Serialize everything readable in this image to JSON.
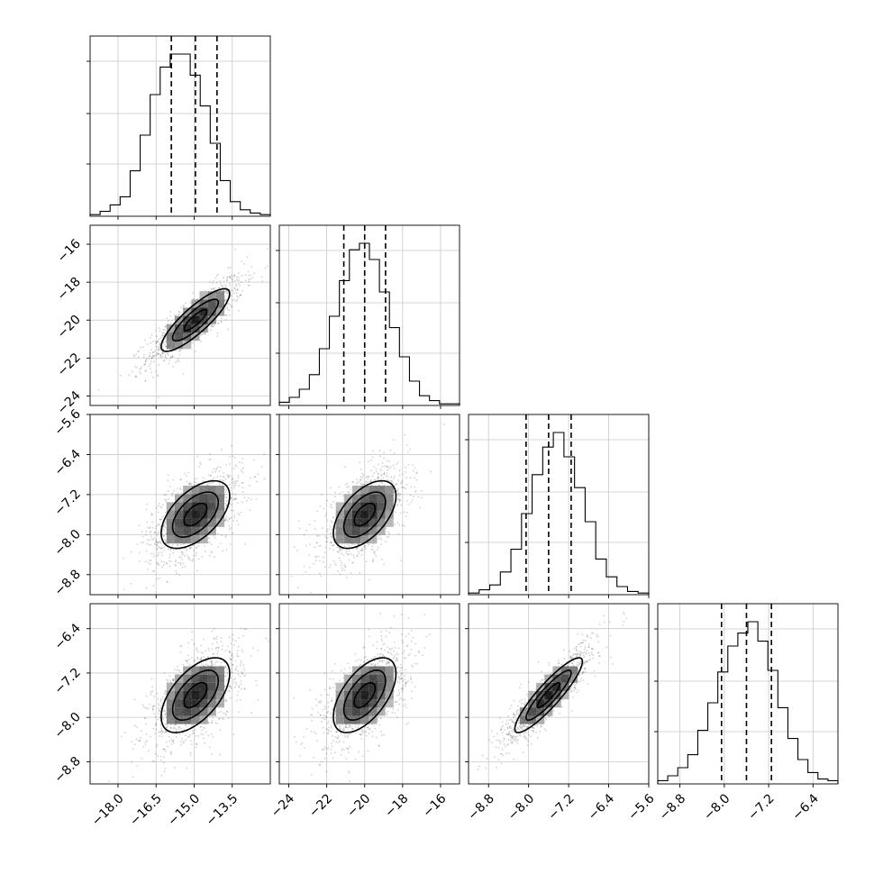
{
  "chart_data": {
    "type": "corner",
    "title": "",
    "n_params": 4,
    "grid": true,
    "params": [
      {
        "range": [
          -19.1,
          -12.0
        ],
        "quantiles": [
          -15.9,
          -14.95,
          -14.1
        ],
        "ticks": [
          -18.0,
          -16.5,
          -15.0,
          -13.5
        ],
        "tick_labels": [
          "−18.0",
          "−16.5",
          "−15.0",
          "−13.5"
        ]
      },
      {
        "range": [
          -24.5,
          -15.0
        ],
        "quantiles": [
          -21.1,
          -20.0,
          -18.9
        ],
        "ticks": [
          -24,
          -22,
          -20,
          -18,
          -16
        ],
        "tick_labels": [
          "−24",
          "−22",
          "−20",
          "−18",
          "−16"
        ]
      },
      {
        "range": [
          -9.2,
          -5.6
        ],
        "quantiles": [
          -8.05,
          -7.6,
          -7.15
        ],
        "ticks": [
          -8.8,
          -8.0,
          -7.2,
          -6.4,
          -5.6
        ],
        "tick_labels": [
          "−8.8",
          "−8.0",
          "−7.2",
          "−6.4",
          "−5.6"
        ]
      },
      {
        "range": [
          -9.2,
          -5.95
        ],
        "quantiles": [
          -8.05,
          -7.6,
          -7.15
        ],
        "ticks": [
          -8.8,
          -8.0,
          -7.2,
          -6.4
        ],
        "tick_labels": [
          "−8.8",
          "−8.0",
          "−7.2",
          "−6.4"
        ]
      }
    ],
    "histograms": [
      {
        "counts": [
          1,
          3,
          7,
          12,
          28,
          50,
          75,
          92,
          100,
          100,
          87,
          68,
          45,
          22,
          9,
          4,
          2,
          1
        ]
      },
      {
        "counts": [
          2,
          5,
          10,
          19,
          35,
          55,
          77,
          96,
          100,
          90,
          70,
          48,
          30,
          15,
          6,
          3,
          1,
          1
        ]
      },
      {
        "counts": [
          1,
          3,
          6,
          14,
          28,
          50,
          74,
          91,
          100,
          85,
          66,
          45,
          22,
          11,
          5,
          2,
          1
        ]
      },
      {
        "counts": [
          2,
          5,
          10,
          18,
          33,
          50,
          69,
          85,
          93,
          100,
          88,
          70,
          47,
          28,
          15,
          7,
          3,
          2
        ]
      }
    ],
    "pairs": [
      {
        "i": 1,
        "j": 0,
        "rho": 0.85
      },
      {
        "i": 2,
        "j": 0,
        "rho": 0.55
      },
      {
        "i": 2,
        "j": 1,
        "rho": 0.55
      },
      {
        "i": 3,
        "j": 0,
        "rho": 0.58
      },
      {
        "i": 3,
        "j": 1,
        "rho": 0.58
      },
      {
        "i": 3,
        "j": 2,
        "rho": 0.9
      }
    ],
    "contour_levels_sigma": [
      0.5,
      1.0,
      1.5
    ]
  }
}
